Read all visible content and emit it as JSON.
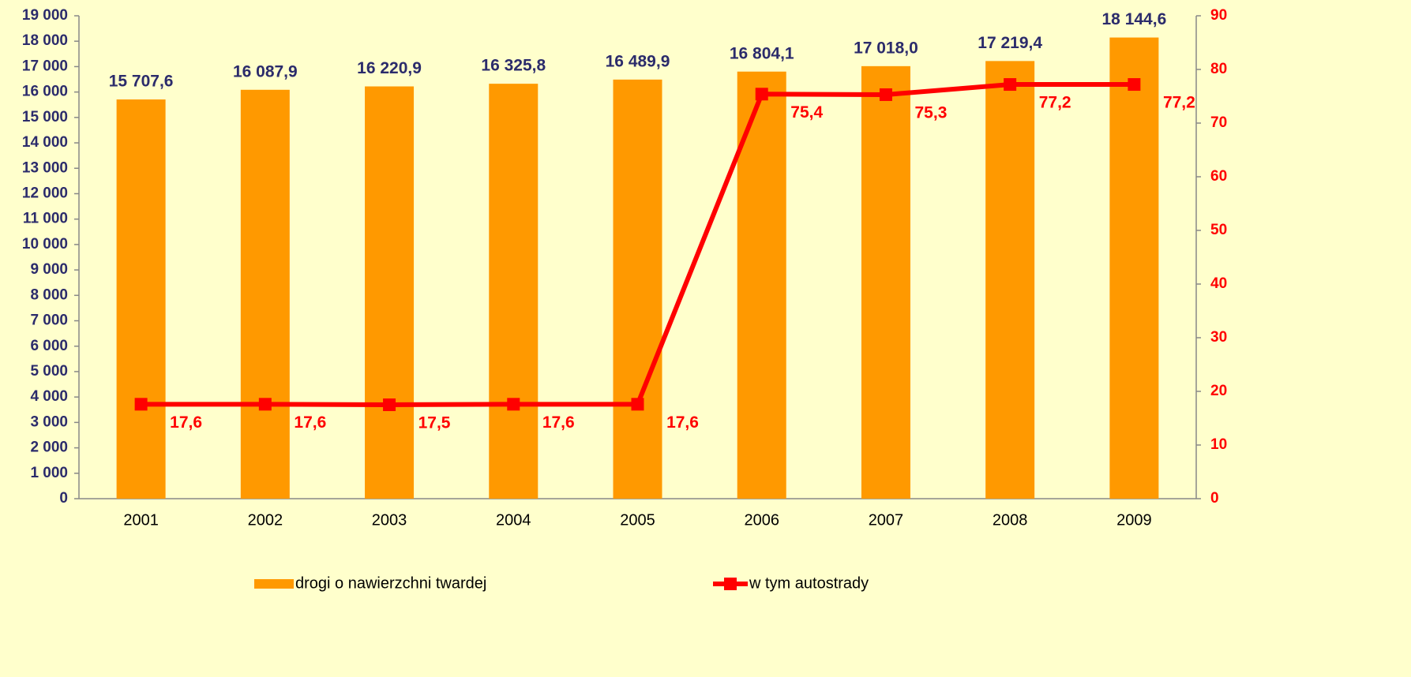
{
  "chart_data": {
    "type": "bar",
    "categories": [
      "2001",
      "2002",
      "2003",
      "2004",
      "2005",
      "2006",
      "2007",
      "2008",
      "2009"
    ],
    "series": [
      {
        "name": "drogi o nawierzchni twardej",
        "type": "bar",
        "color": "#FF9900",
        "values": [
          15707.6,
          16087.9,
          16220.9,
          16325.8,
          16489.9,
          16804.1,
          17018.0,
          17219.4,
          18144.6
        ],
        "value_labels": [
          "15 707,6",
          "16 087,9",
          "16 220,9",
          "16 325,8",
          "16 489,9",
          "16 804,1",
          "17 018,0",
          "17 219,4",
          "18 144,6"
        ]
      },
      {
        "name": "w tym autostrady",
        "type": "line",
        "axis": "y2",
        "color": "#FF0000",
        "values": [
          17.6,
          17.6,
          17.5,
          17.6,
          17.6,
          75.4,
          75.3,
          77.2,
          77.2
        ],
        "value_labels": [
          "17,6",
          "17,6",
          "17,5",
          "17,6",
          "17,6",
          "75,4",
          "75,3",
          "77,2",
          "77,2"
        ]
      }
    ],
    "ylim": [
      0,
      19000
    ],
    "yticks": [
      0,
      {
        "value": 1000,
        "label": "1 000"
      },
      {
        "value": 2000,
        "label": "2 000"
      },
      {
        "value": 3000,
        "label": "3 000"
      },
      {
        "value": 4000,
        "label": "4 000"
      },
      {
        "value": 5000,
        "label": "5 000"
      },
      {
        "value": 6000,
        "label": "6 000"
      },
      {
        "value": 7000,
        "label": "7 000"
      },
      {
        "value": 8000,
        "label": "8 000"
      },
      {
        "value": 9000,
        "label": "9 000"
      },
      {
        "value": 10000,
        "label": "10 000"
      },
      {
        "value": 11000,
        "label": "11 000"
      },
      {
        "value": 12000,
        "label": "12 000"
      },
      {
        "value": 13000,
        "label": "13 000"
      },
      {
        "value": 14000,
        "label": "14 000"
      },
      {
        "value": 15000,
        "label": "15 000"
      },
      {
        "value": 16000,
        "label": "16 000"
      },
      {
        "value": 17000,
        "label": "17 000"
      },
      {
        "value": 18000,
        "label": "18 000"
      },
      {
        "value": 19000,
        "label": "19 000"
      }
    ],
    "y2lim": [
      0,
      90
    ],
    "y2ticks": [
      0,
      10,
      20,
      30,
      40,
      50,
      60,
      70,
      80,
      90
    ],
    "legend": "bottom"
  }
}
